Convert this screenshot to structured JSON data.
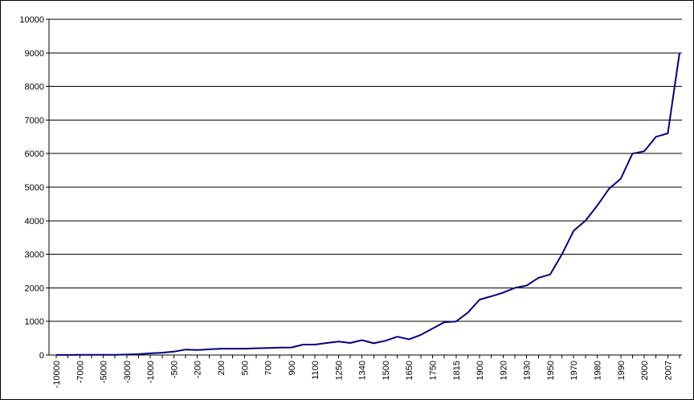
{
  "chart_data": {
    "type": "line",
    "title": "",
    "xlabel": "",
    "ylabel": "",
    "ylim": [
      0,
      10000
    ],
    "yticks": [
      0,
      1000,
      2000,
      3000,
      4000,
      5000,
      6000,
      7000,
      8000,
      9000,
      10000
    ],
    "grid": true,
    "legend": "none",
    "colors": {
      "line": "#000080",
      "grid": "#000000",
      "background": "#ffffff"
    },
    "x_tick_labels": [
      "-10000",
      "-7000",
      "-5000",
      "-3000",
      "-1000",
      "-500",
      "-200",
      "200",
      "500",
      "700",
      "900",
      "1100",
      "1250",
      "1340",
      "1500",
      "1650",
      "1750",
      "1815",
      "1900",
      "1920",
      "1930",
      "1950",
      "1970",
      "1980",
      "1990",
      "2000",
      "2007"
    ],
    "x": [
      "-10000",
      "-8000",
      "-7000",
      "-6000",
      "-5000",
      "-4000",
      "-3000",
      "-2000",
      "-1000",
      "-800",
      "-500",
      "-400",
      "-200",
      "1",
      "200",
      "400",
      "500",
      "600",
      "700",
      "800",
      "900",
      "1000",
      "1100",
      "1200",
      "1250",
      "1300",
      "1340",
      "1400",
      "1500",
      "1600",
      "1650",
      "1700",
      "1750",
      "1800",
      "1815",
      "1850",
      "1900",
      "1910",
      "1920",
      "1927",
      "1930",
      "1940",
      "1950",
      "1960",
      "1970",
      "1975",
      "1980",
      "1985",
      "1990",
      "1995",
      "2000",
      "2005",
      "2007",
      "2010"
    ],
    "series": [
      {
        "values": [
          2,
          3,
          5,
          5,
          5,
          7,
          14,
          27,
          50,
          70,
          100,
          162,
          150,
          170,
          190,
          190,
          190,
          200,
          207,
          220,
          226,
          310,
          310,
          360,
          400,
          360,
          443,
          350,
          425,
          545,
          470,
          600,
          790,
          978,
          1000,
          1262,
          1650,
          1750,
          1860,
          2000,
          2070,
          2300,
          2400,
          3000,
          3700,
          4000,
          4450,
          4950,
          5250,
          6000,
          6070,
          6500,
          6600,
          9000
        ]
      }
    ]
  }
}
